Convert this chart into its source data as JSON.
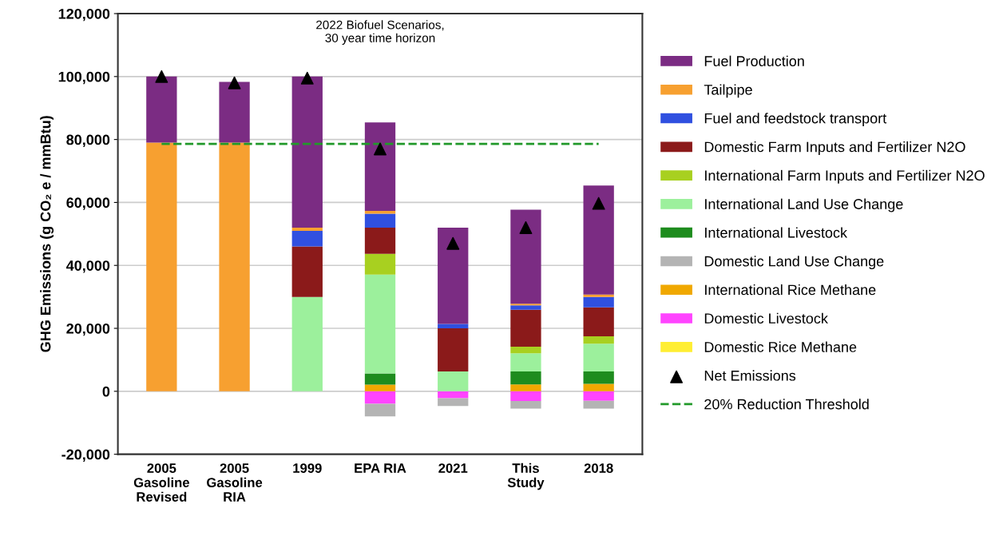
{
  "chart_data": {
    "type": "bar",
    "stacked": true,
    "ylabel": "GHG Emissions (g CO₂ e / mmBtu)",
    "annotations": [
      "2022 Biofuel Scenarios,\n30 year time horizon"
    ],
    "categories": [
      "2005\nGasoline\nRevised",
      "2005\nGasoline\nRIA",
      "1999",
      "EPA RIA",
      "2021",
      "This\nStudy",
      "2018"
    ],
    "ylim": [
      -20000,
      120000
    ],
    "yticks": [
      {
        "value": -20000,
        "label": "-20,000"
      },
      {
        "value": 0,
        "label": "0"
      },
      {
        "value": 20000,
        "label": "20,000"
      },
      {
        "value": 40000,
        "label": "40,000"
      },
      {
        "value": 60000,
        "label": "60,000"
      },
      {
        "value": 80000,
        "label": "80,000"
      },
      {
        "value": 100000,
        "label": "100,000"
      },
      {
        "value": 120000,
        "label": "120,000"
      }
    ],
    "grid": "y",
    "legend": "right",
    "series": [
      {
        "name": "Domestic Rice Methane",
        "color": "#ffee33",
        "values": [
          0,
          0,
          0,
          0,
          0,
          0,
          0
        ]
      },
      {
        "name": "Domestic Livestock",
        "color": "#ff44ff",
        "values": [
          0,
          0,
          0,
          -4000,
          -2200,
          -3100,
          -3000
        ]
      },
      {
        "name": "International Rice Methane",
        "color": "#f0a800",
        "values": [
          0,
          0,
          0,
          2100,
          0,
          2200,
          2400
        ]
      },
      {
        "name": "Domestic Land Use Change",
        "color": "#b4b4b4",
        "values": [
          0,
          0,
          0,
          -4000,
          -2500,
          -2400,
          -2500
        ]
      },
      {
        "name": "International Livestock",
        "color": "#1e8c1e",
        "values": [
          0,
          0,
          0,
          3600,
          0,
          4100,
          3900
        ]
      },
      {
        "name": "International Land Use Change",
        "color": "#9cf09c",
        "values": [
          0,
          0,
          30000,
          31400,
          6300,
          5800,
          8800
        ]
      },
      {
        "name": "International Farm Inputs and Fertilizer N2O",
        "color": "#a8d020",
        "values": [
          0,
          0,
          0,
          6600,
          0,
          2100,
          2400
        ]
      },
      {
        "name": "Domestic Farm Inputs and Fertilizer N2O",
        "color": "#8b1a1a",
        "values": [
          0,
          0,
          16000,
          8300,
          13700,
          11700,
          9200
        ]
      },
      {
        "name": "Fuel and feedstock transport",
        "color": "#3050e0",
        "values": [
          0,
          0,
          5000,
          4400,
          1400,
          1400,
          3300
        ]
      },
      {
        "name": "Tailpipe",
        "color": "#f7a030",
        "values": [
          79000,
          79000,
          1000,
          900,
          0,
          500,
          700
        ]
      },
      {
        "name": "Fuel Production",
        "color": "#7b2c83",
        "values": [
          21000,
          19300,
          48000,
          28100,
          30600,
          29900,
          34700
        ]
      },
      {
        "name": "Net Emissions",
        "type": "scatter",
        "marker": "triangle",
        "color": "#000000",
        "values": [
          100000,
          98000,
          99500,
          77000,
          47000,
          52000,
          59700
        ]
      },
      {
        "name": "20% Reduction Threshold",
        "type": "line",
        "line_style": "dashed",
        "marker": "none",
        "color": "#22992a",
        "values": [
          78600,
          78600,
          78600,
          78600,
          78600,
          78600,
          78600
        ]
      }
    ]
  }
}
